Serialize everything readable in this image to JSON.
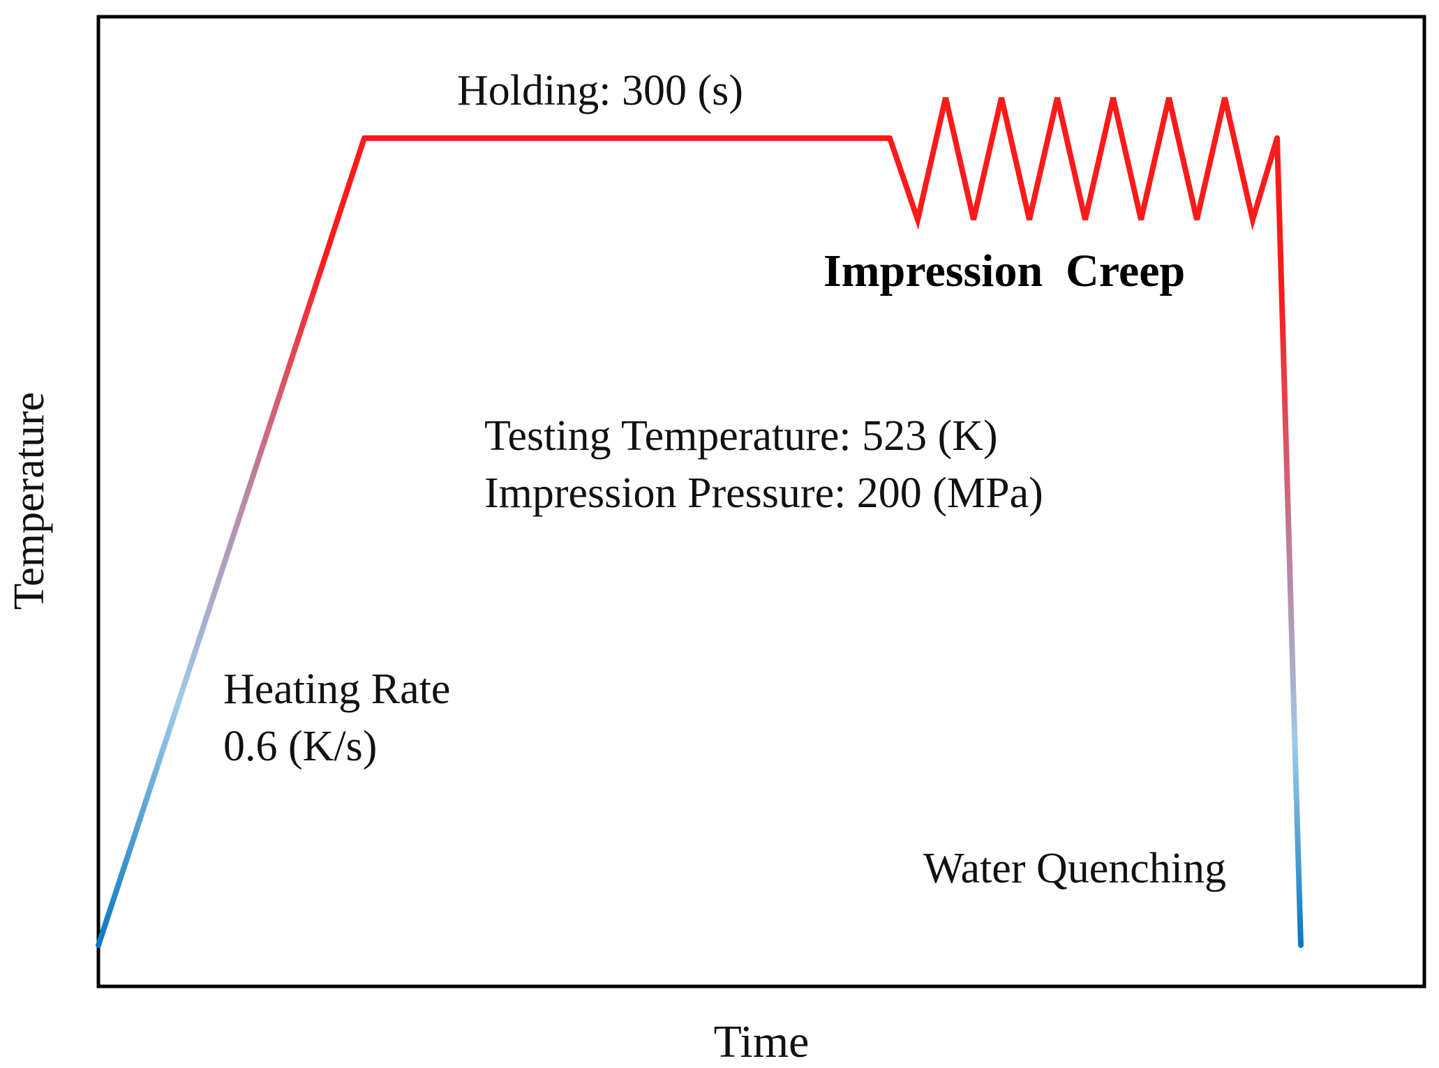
{
  "diagram": {
    "type": "heat-treatment-schedule",
    "axes": {
      "x_label": "Time",
      "y_label": "Temperature"
    },
    "annotations": {
      "holding": "Holding: 300 (s)",
      "creep_title": "Impression  Creep",
      "testing_temperature": "Testing Temperature: 523 (K)",
      "impression_pressure": "Impression Pressure: 200 (MPa)",
      "heating_rate_line1": "Heating Rate",
      "heating_rate_line2": "0.6 (K/s)",
      "quench": "Water Quenching"
    },
    "stages": [
      "heating",
      "holding",
      "impression creep cycles",
      "water quenching"
    ],
    "creep_cycles": 7,
    "colors": {
      "hot": "#ff1a1a",
      "mid": "#b88aaa",
      "light": "#9ecbe6",
      "cold": "#0a78c2",
      "frame": "#000000"
    }
  }
}
